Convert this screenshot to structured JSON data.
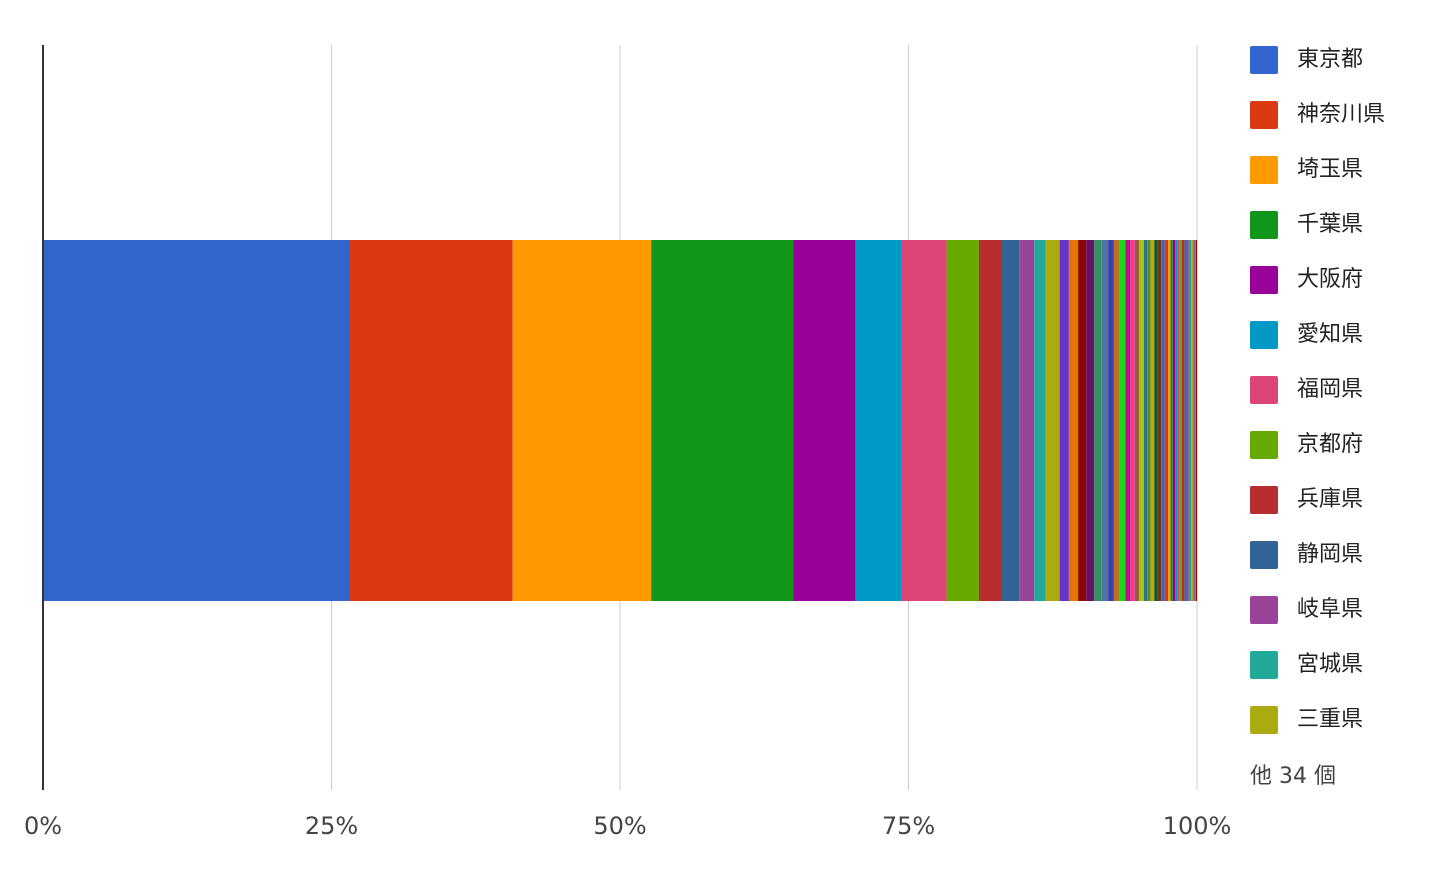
{
  "chart_data": {
    "type": "stacked-bar-100",
    "series": [
      {
        "name": "東京都",
        "color": "#3366cc",
        "values": [
          26.6
        ]
      },
      {
        "name": "神奈川県",
        "color": "#dc3912",
        "values": [
          14.1
        ]
      },
      {
        "name": "埼玉県",
        "color": "#ff9900",
        "values": [
          12.0
        ]
      },
      {
        "name": "千葉県",
        "color": "#109618",
        "values": [
          12.3
        ]
      },
      {
        "name": "大阪府",
        "color": "#990099",
        "values": [
          5.4
        ]
      },
      {
        "name": "愛知県",
        "color": "#0099c6",
        "values": [
          4.0
        ]
      },
      {
        "name": "福岡県",
        "color": "#dd4477",
        "values": [
          3.9
        ]
      },
      {
        "name": "京都府",
        "color": "#66aa00",
        "values": [
          2.8
        ]
      },
      {
        "name": "兵庫県",
        "color": "#b82e2e",
        "values": [
          2.0
        ]
      },
      {
        "name": "静岡県",
        "color": "#316395",
        "values": [
          1.5
        ]
      },
      {
        "name": "岐阜県",
        "color": "#994499",
        "values": [
          1.3
        ]
      },
      {
        "name": "宮城県",
        "color": "#22aa99",
        "values": [
          1.0
        ]
      },
      {
        "name": "三重県",
        "color": "#aaaa11",
        "values": [
          1.2
        ]
      },
      {
        "color": "#6633cc",
        "values": [
          0.8
        ]
      },
      {
        "color": "#e67300",
        "values": [
          0.8
        ]
      },
      {
        "color": "#8b0707",
        "values": [
          0.7
        ]
      },
      {
        "color": "#651067",
        "values": [
          0.7
        ]
      },
      {
        "color": "#329262",
        "values": [
          0.6
        ]
      },
      {
        "color": "#5574a6",
        "values": [
          0.6
        ]
      },
      {
        "color": "#3b3eac",
        "values": [
          0.5
        ]
      },
      {
        "color": "#b77322",
        "values": [
          0.5
        ]
      },
      {
        "color": "#16d620",
        "values": [
          0.5
        ]
      },
      {
        "color": "#b91383",
        "values": [
          0.4
        ]
      },
      {
        "color": "#f4359e",
        "values": [
          0.4
        ]
      },
      {
        "color": "#9c5935",
        "values": [
          0.4
        ]
      },
      {
        "color": "#a9c413",
        "values": [
          0.4
        ]
      },
      {
        "color": "#2a778d",
        "values": [
          0.3
        ]
      },
      {
        "color": "#668d1c",
        "values": [
          0.3
        ]
      },
      {
        "color": "#bea413",
        "values": [
          0.3
        ]
      },
      {
        "color": "#0c5922",
        "values": [
          0.3
        ]
      },
      {
        "color": "#743411",
        "values": [
          0.3
        ]
      },
      {
        "color": "#3366cc",
        "values": [
          0.3
        ]
      },
      {
        "color": "#dc3912",
        "values": [
          0.3
        ]
      },
      {
        "color": "#ff9900",
        "values": [
          0.2
        ]
      },
      {
        "color": "#109618",
        "values": [
          0.2
        ]
      },
      {
        "color": "#990099",
        "values": [
          0.2
        ]
      },
      {
        "color": "#0099c6",
        "values": [
          0.2
        ]
      },
      {
        "color": "#dd4477",
        "values": [
          0.2
        ]
      },
      {
        "color": "#66aa00",
        "values": [
          0.2
        ]
      },
      {
        "color": "#b82e2e",
        "values": [
          0.2
        ]
      },
      {
        "color": "#316395",
        "values": [
          0.2
        ]
      },
      {
        "color": "#994499",
        "values": [
          0.2
        ]
      },
      {
        "color": "#22aa99",
        "values": [
          0.2
        ]
      },
      {
        "color": "#aaaa11",
        "values": [
          0.2
        ]
      },
      {
        "color": "#6633cc",
        "values": [
          0.1
        ]
      },
      {
        "color": "#e67300",
        "values": [
          0.1
        ]
      },
      {
        "color": "#8b0707",
        "values": [
          0.1
        ]
      }
    ],
    "legend_more": "他 34 個",
    "xlim": [
      0,
      100
    ],
    "xticks": [
      {
        "value": 0,
        "label": "0%"
      },
      {
        "value": 25,
        "label": "25%"
      },
      {
        "value": 50,
        "label": "50%"
      },
      {
        "value": 75,
        "label": "75%"
      },
      {
        "value": 100,
        "label": "100%"
      }
    ],
    "grid": true,
    "legend": "right"
  }
}
